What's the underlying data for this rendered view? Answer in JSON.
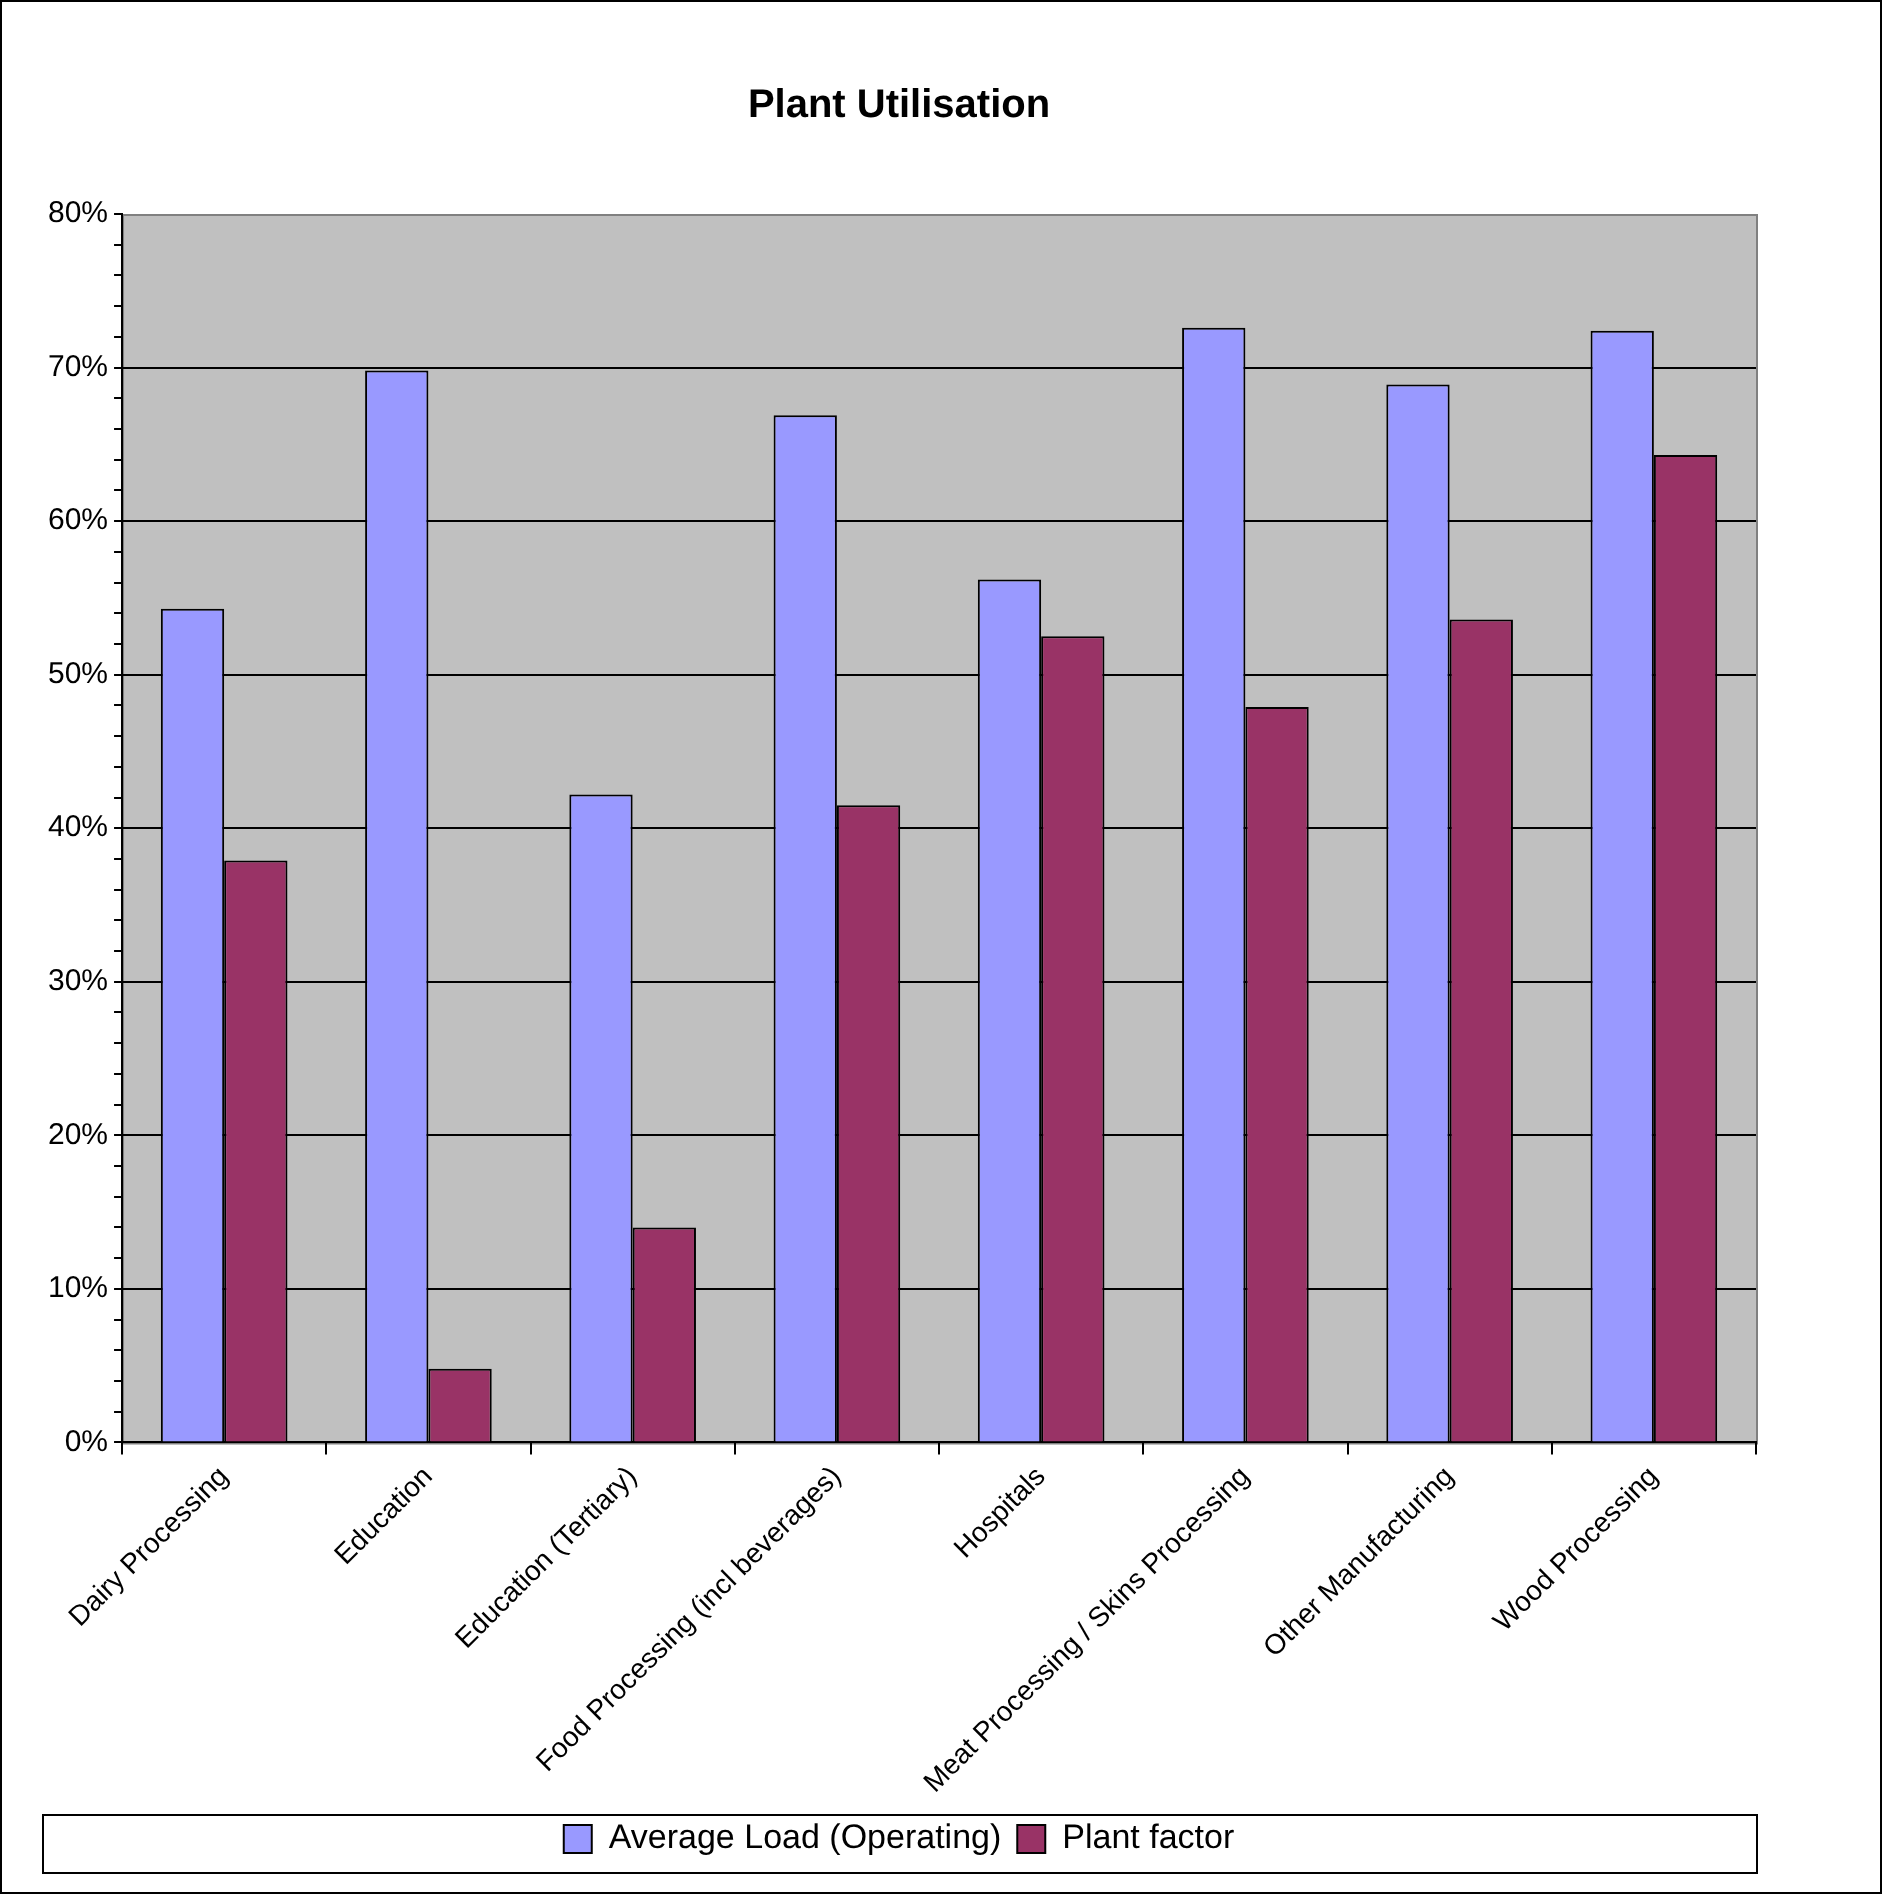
{
  "chart_data": {
    "type": "bar",
    "title": "Plant Utilisation",
    "categories": [
      "Dairy Processing",
      "Education",
      "Education (Tertiary)",
      "Food Processing (incl beverages)",
      "Hospitals",
      "Meat Processing / Skins Processing",
      "Other Manufacturing",
      "Wood Processing"
    ],
    "series": [
      {
        "name": "Average Load (Operating)",
        "color": "#9999ff",
        "values": [
          54.3,
          69.8,
          42.2,
          66.9,
          56.2,
          72.6,
          68.9,
          72.4
        ]
      },
      {
        "name": "Plant factor",
        "color": "#993366",
        "values": [
          37.9,
          4.8,
          14.0,
          41.5,
          52.5,
          47.9,
          53.6,
          64.3
        ]
      }
    ],
    "ylim": [
      0,
      80
    ],
    "yticks": [
      {
        "value": 0,
        "label": "0%"
      },
      {
        "value": 2,
        "label": null
      },
      {
        "value": 4,
        "label": null
      },
      {
        "value": 6,
        "label": null
      },
      {
        "value": 8,
        "label": null
      },
      {
        "value": 10,
        "label": "10%"
      },
      {
        "value": 12,
        "label": null
      },
      {
        "value": 14,
        "label": null
      },
      {
        "value": 16,
        "label": null
      },
      {
        "value": 18,
        "label": null
      },
      {
        "value": 20,
        "label": "20%"
      },
      {
        "value": 22,
        "label": null
      },
      {
        "value": 24,
        "label": null
      },
      {
        "value": 26,
        "label": null
      },
      {
        "value": 28,
        "label": null
      },
      {
        "value": 30,
        "label": "30%"
      },
      {
        "value": 32,
        "label": null
      },
      {
        "value": 34,
        "label": null
      },
      {
        "value": 36,
        "label": null
      },
      {
        "value": 38,
        "label": null
      },
      {
        "value": 40,
        "label": "40%"
      },
      {
        "value": 42,
        "label": null
      },
      {
        "value": 44,
        "label": null
      },
      {
        "value": 46,
        "label": null
      },
      {
        "value": 48,
        "label": null
      },
      {
        "value": 50,
        "label": "50%"
      },
      {
        "value": 52,
        "label": null
      },
      {
        "value": 54,
        "label": null
      },
      {
        "value": 56,
        "label": null
      },
      {
        "value": 58,
        "label": null
      },
      {
        "value": 60,
        "label": "60%"
      },
      {
        "value": 62,
        "label": null
      },
      {
        "value": 64,
        "label": null
      },
      {
        "value": 66,
        "label": null
      },
      {
        "value": 68,
        "label": null
      },
      {
        "value": 70,
        "label": "70%"
      },
      {
        "value": 72,
        "label": null
      },
      {
        "value": 74,
        "label": null
      },
      {
        "value": 76,
        "label": null
      },
      {
        "value": 78,
        "label": null
      },
      {
        "value": 80,
        "label": "80%"
      }
    ],
    "grid": "y",
    "legend": "bottom"
  }
}
